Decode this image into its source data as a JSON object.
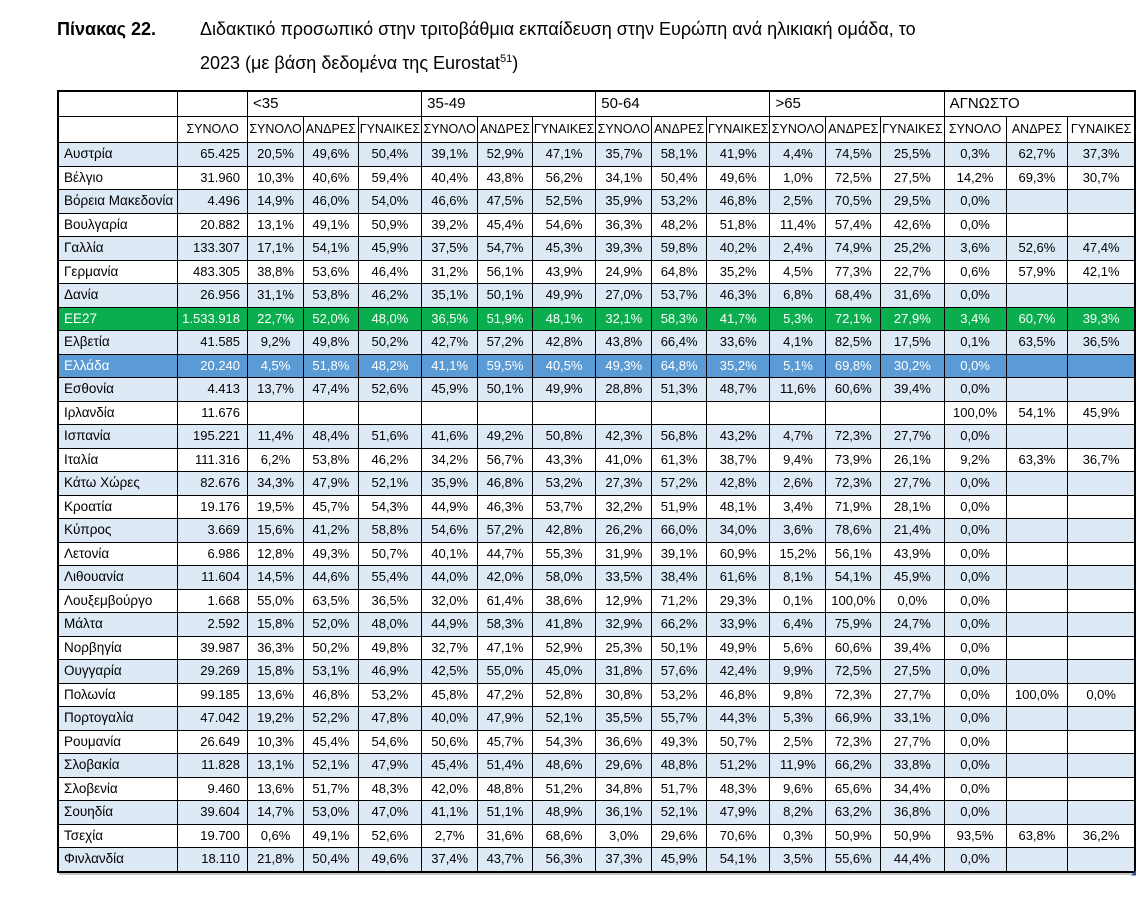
{
  "caption": {
    "label": "Πίνακας 22.",
    "line1": "Διδακτικό προσωπικό στην τριτοβάθμια εκπαίδευση στην Ευρώπη ανά ηλικιακή ομάδα, το",
    "line2": "2023 (με βάση δεδομένα της Eurostat",
    "footnote": "51",
    "suffix": ")"
  },
  "table": {
    "colors": {
      "stripe": "#dde9f5",
      "ee27_green": "#0bae4f",
      "greece_blue": "#5b9bd5",
      "border": "#000000",
      "corner_marker": "#3a4f92"
    },
    "group_headers": [
      {
        "label": "",
        "span": 1
      },
      {
        "label": "",
        "span": 1
      },
      {
        "label": "<35",
        "span": 3
      },
      {
        "label": "35-49",
        "span": 3
      },
      {
        "label": "50-64",
        "span": 3
      },
      {
        "label": ">65",
        "span": 3
      },
      {
        "label": "ΑΓΝΩΣΤΟ",
        "span": 3
      }
    ],
    "sub_headers": [
      "",
      "ΣΥΝΟΛΟ",
      "ΣΥΝΟΛΟ",
      "ΑΝΔΡΕΣ",
      "ΓΥΝΑΙΚΕΣ",
      "ΣΥΝΟΛΟ",
      "ΑΝΔΡΕΣ",
      "ΓΥΝΑΙΚΕΣ",
      "ΣΥΝΟΛΟ",
      "ΑΝΔΡΕΣ",
      "ΓΥΝΑΙΚΕΣ",
      "ΣΥΝΟΛΟ",
      "ΑΝΔΡΕΣ",
      "ΓΥΝΑΙΚΕΣ",
      "ΣΥΝΟΛΟ",
      "ΑΝΔΡΕΣ",
      "ΓΥΝΑΙΚΕΣ"
    ],
    "rows": [
      {
        "country": "Αυστρία",
        "total": "65.425",
        "highlight": null,
        "cells": [
          "20,5%",
          "49,6%",
          "50,4%",
          "39,1%",
          "52,9%",
          "47,1%",
          "35,7%",
          "58,1%",
          "41,9%",
          "4,4%",
          "74,5%",
          "25,5%",
          "0,3%",
          "62,7%",
          "37,3%"
        ]
      },
      {
        "country": "Βέλγιο",
        "total": "31.960",
        "highlight": null,
        "cells": [
          "10,3%",
          "40,6%",
          "59,4%",
          "40,4%",
          "43,8%",
          "56,2%",
          "34,1%",
          "50,4%",
          "49,6%",
          "1,0%",
          "72,5%",
          "27,5%",
          "14,2%",
          "69,3%",
          "30,7%"
        ]
      },
      {
        "country": "Βόρεια Μακεδονία",
        "total": "4.496",
        "highlight": null,
        "cells": [
          "14,9%",
          "46,0%",
          "54,0%",
          "46,6%",
          "47,5%",
          "52,5%",
          "35,9%",
          "53,2%",
          "46,8%",
          "2,5%",
          "70,5%",
          "29,5%",
          "0,0%",
          "",
          ""
        ]
      },
      {
        "country": "Βουλγαρία",
        "total": "20.882",
        "highlight": null,
        "cells": [
          "13,1%",
          "49,1%",
          "50,9%",
          "39,2%",
          "45,4%",
          "54,6%",
          "36,3%",
          "48,2%",
          "51,8%",
          "11,4%",
          "57,4%",
          "42,6%",
          "0,0%",
          "",
          ""
        ]
      },
      {
        "country": "Γαλλία",
        "total": "133.307",
        "highlight": null,
        "cells": [
          "17,1%",
          "54,1%",
          "45,9%",
          "37,5%",
          "54,7%",
          "45,3%",
          "39,3%",
          "59,8%",
          "40,2%",
          "2,4%",
          "74,9%",
          "25,2%",
          "3,6%",
          "52,6%",
          "47,4%"
        ]
      },
      {
        "country": "Γερμανία",
        "total": "483.305",
        "highlight": null,
        "cells": [
          "38,8%",
          "53,6%",
          "46,4%",
          "31,2%",
          "56,1%",
          "43,9%",
          "24,9%",
          "64,8%",
          "35,2%",
          "4,5%",
          "77,3%",
          "22,7%",
          "0,6%",
          "57,9%",
          "42,1%"
        ]
      },
      {
        "country": "Δανία",
        "total": "26.956",
        "highlight": null,
        "cells": [
          "31,1%",
          "53,8%",
          "46,2%",
          "35,1%",
          "50,1%",
          "49,9%",
          "27,0%",
          "53,7%",
          "46,3%",
          "6,8%",
          "68,4%",
          "31,6%",
          "0,0%",
          "",
          ""
        ]
      },
      {
        "country": "ΕΕ27",
        "total": "1.533.918",
        "highlight": "ee27",
        "cells": [
          "22,7%",
          "52,0%",
          "48,0%",
          "36,5%",
          "51,9%",
          "48,1%",
          "32,1%",
          "58,3%",
          "41,7%",
          "5,3%",
          "72,1%",
          "27,9%",
          "3,4%",
          "60,7%",
          "39,3%"
        ]
      },
      {
        "country": "Ελβετία",
        "total": "41.585",
        "highlight": null,
        "cells": [
          "9,2%",
          "49,8%",
          "50,2%",
          "42,7%",
          "57,2%",
          "42,8%",
          "43,8%",
          "66,4%",
          "33,6%",
          "4,1%",
          "82,5%",
          "17,5%",
          "0,1%",
          "63,5%",
          "36,5%"
        ]
      },
      {
        "country": "Ελλάδα",
        "total": "20.240",
        "highlight": "greece",
        "cells": [
          "4,5%",
          "51,8%",
          "48,2%",
          "41,1%",
          "59,5%",
          "40,5%",
          "49,3%",
          "64,8%",
          "35,2%",
          "5,1%",
          "69,8%",
          "30,2%",
          "0,0%",
          "",
          ""
        ]
      },
      {
        "country": "Εσθονία",
        "total": "4.413",
        "highlight": null,
        "cells": [
          "13,7%",
          "47,4%",
          "52,6%",
          "45,9%",
          "50,1%",
          "49,9%",
          "28,8%",
          "51,3%",
          "48,7%",
          "11,6%",
          "60,6%",
          "39,4%",
          "0,0%",
          "",
          ""
        ]
      },
      {
        "country": "Ιρλανδία",
        "total": "11.676",
        "highlight": null,
        "cells": [
          "",
          "",
          "",
          "",
          "",
          "",
          "",
          "",
          "",
          "",
          "",
          "",
          "100,0%",
          "54,1%",
          "45,9%"
        ]
      },
      {
        "country": "Ισπανία",
        "total": "195.221",
        "highlight": null,
        "cells": [
          "11,4%",
          "48,4%",
          "51,6%",
          "41,6%",
          "49,2%",
          "50,8%",
          "42,3%",
          "56,8%",
          "43,2%",
          "4,7%",
          "72,3%",
          "27,7%",
          "0,0%",
          "",
          ""
        ]
      },
      {
        "country": "Ιταλία",
        "total": "111.316",
        "highlight": null,
        "cells": [
          "6,2%",
          "53,8%",
          "46,2%",
          "34,2%",
          "56,7%",
          "43,3%",
          "41,0%",
          "61,3%",
          "38,7%",
          "9,4%",
          "73,9%",
          "26,1%",
          "9,2%",
          "63,3%",
          "36,7%"
        ]
      },
      {
        "country": "Κάτω Χώρες",
        "total": "82.676",
        "highlight": null,
        "cells": [
          "34,3%",
          "47,9%",
          "52,1%",
          "35,9%",
          "46,8%",
          "53,2%",
          "27,3%",
          "57,2%",
          "42,8%",
          "2,6%",
          "72,3%",
          "27,7%",
          "0,0%",
          "",
          ""
        ]
      },
      {
        "country": "Κροατία",
        "total": "19.176",
        "highlight": null,
        "cells": [
          "19,5%",
          "45,7%",
          "54,3%",
          "44,9%",
          "46,3%",
          "53,7%",
          "32,2%",
          "51,9%",
          "48,1%",
          "3,4%",
          "71,9%",
          "28,1%",
          "0,0%",
          "",
          ""
        ]
      },
      {
        "country": "Κύπρος",
        "total": "3.669",
        "highlight": null,
        "cells": [
          "15,6%",
          "41,2%",
          "58,8%",
          "54,6%",
          "57,2%",
          "42,8%",
          "26,2%",
          "66,0%",
          "34,0%",
          "3,6%",
          "78,6%",
          "21,4%",
          "0,0%",
          "",
          ""
        ]
      },
      {
        "country": "Λετονία",
        "total": "6.986",
        "highlight": null,
        "cells": [
          "12,8%",
          "49,3%",
          "50,7%",
          "40,1%",
          "44,7%",
          "55,3%",
          "31,9%",
          "39,1%",
          "60,9%",
          "15,2%",
          "56,1%",
          "43,9%",
          "0,0%",
          "",
          ""
        ]
      },
      {
        "country": "Λιθουανία",
        "total": "11.604",
        "highlight": null,
        "cells": [
          "14,5%",
          "44,6%",
          "55,4%",
          "44,0%",
          "42,0%",
          "58,0%",
          "33,5%",
          "38,4%",
          "61,6%",
          "8,1%",
          "54,1%",
          "45,9%",
          "0,0%",
          "",
          ""
        ]
      },
      {
        "country": "Λουξεμβούργο",
        "total": "1.668",
        "highlight": null,
        "cells": [
          "55,0%",
          "63,5%",
          "36,5%",
          "32,0%",
          "61,4%",
          "38,6%",
          "12,9%",
          "71,2%",
          "29,3%",
          "0,1%",
          "100,0%",
          "0,0%",
          "0,0%",
          "",
          ""
        ]
      },
      {
        "country": "Μάλτα",
        "total": "2.592",
        "highlight": null,
        "cells": [
          "15,8%",
          "52,0%",
          "48,0%",
          "44,9%",
          "58,3%",
          "41,8%",
          "32,9%",
          "66,2%",
          "33,9%",
          "6,4%",
          "75,9%",
          "24,7%",
          "0,0%",
          "",
          ""
        ]
      },
      {
        "country": "Νορβηγία",
        "total": "39.987",
        "highlight": null,
        "cells": [
          "36,3%",
          "50,2%",
          "49,8%",
          "32,7%",
          "47,1%",
          "52,9%",
          "25,3%",
          "50,1%",
          "49,9%",
          "5,6%",
          "60,6%",
          "39,4%",
          "0,0%",
          "",
          ""
        ]
      },
      {
        "country": "Ουγγαρία",
        "total": "29.269",
        "highlight": null,
        "cells": [
          "15,8%",
          "53,1%",
          "46,9%",
          "42,5%",
          "55,0%",
          "45,0%",
          "31,8%",
          "57,6%",
          "42,4%",
          "9,9%",
          "72,5%",
          "27,5%",
          "0,0%",
          "",
          ""
        ]
      },
      {
        "country": "Πολωνία",
        "total": "99.185",
        "highlight": null,
        "cells": [
          "13,6%",
          "46,8%",
          "53,2%",
          "45,8%",
          "47,2%",
          "52,8%",
          "30,8%",
          "53,2%",
          "46,8%",
          "9,8%",
          "72,3%",
          "27,7%",
          "0,0%",
          "100,0%",
          "0,0%"
        ]
      },
      {
        "country": "Πορτογαλία",
        "total": "47.042",
        "highlight": null,
        "cells": [
          "19,2%",
          "52,2%",
          "47,8%",
          "40,0%",
          "47,9%",
          "52,1%",
          "35,5%",
          "55,7%",
          "44,3%",
          "5,3%",
          "66,9%",
          "33,1%",
          "0,0%",
          "",
          ""
        ]
      },
      {
        "country": "Ρουμανία",
        "total": "26.649",
        "highlight": null,
        "cells": [
          "10,3%",
          "45,4%",
          "54,6%",
          "50,6%",
          "45,7%",
          "54,3%",
          "36,6%",
          "49,3%",
          "50,7%",
          "2,5%",
          "72,3%",
          "27,7%",
          "0,0%",
          "",
          ""
        ]
      },
      {
        "country": "Σλοβακία",
        "total": "11.828",
        "highlight": null,
        "cells": [
          "13,1%",
          "52,1%",
          "47,9%",
          "45,4%",
          "51,4%",
          "48,6%",
          "29,6%",
          "48,8%",
          "51,2%",
          "11,9%",
          "66,2%",
          "33,8%",
          "0,0%",
          "",
          ""
        ]
      },
      {
        "country": "Σλοβενία",
        "total": "9.460",
        "highlight": null,
        "cells": [
          "13,6%",
          "51,7%",
          "48,3%",
          "42,0%",
          "48,8%",
          "51,2%",
          "34,8%",
          "51,7%",
          "48,3%",
          "9,6%",
          "65,6%",
          "34,4%",
          "0,0%",
          "",
          ""
        ]
      },
      {
        "country": "Σουηδία",
        "total": "39.604",
        "highlight": null,
        "cells": [
          "14,7%",
          "53,0%",
          "47,0%",
          "41,1%",
          "51,1%",
          "48,9%",
          "36,1%",
          "52,1%",
          "47,9%",
          "8,2%",
          "63,2%",
          "36,8%",
          "0,0%",
          "",
          ""
        ]
      },
      {
        "country": "Τσεχία",
        "total": "19.700",
        "highlight": null,
        "cells": [
          "0,6%",
          "49,1%",
          "52,6%",
          "2,7%",
          "31,6%",
          "68,6%",
          "3,0%",
          "29,6%",
          "70,6%",
          "0,3%",
          "50,9%",
          "50,9%",
          "93,5%",
          "63,8%",
          "36,2%"
        ]
      },
      {
        "country": "Φινλανδία",
        "total": "18.110",
        "highlight": null,
        "cells": [
          "21,8%",
          "50,4%",
          "49,6%",
          "37,4%",
          "43,7%",
          "56,3%",
          "37,3%",
          "45,9%",
          "54,1%",
          "3,5%",
          "55,6%",
          "44,4%",
          "0,0%",
          "",
          ""
        ]
      }
    ]
  }
}
